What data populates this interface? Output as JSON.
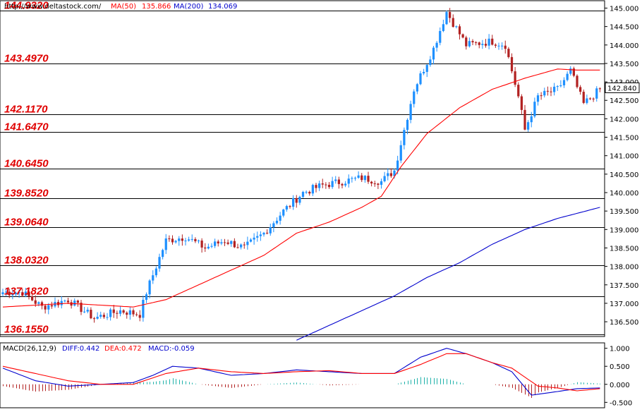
{
  "header": {
    "source": "http://www.deltastock.com/",
    "ma50_label": "MA(50)",
    "ma50_value": "135.866",
    "ma200_label": "MA(200)",
    "ma200_value": "134.069"
  },
  "macd_header": {
    "title": "MACD(26,12,9)",
    "diff": "DIFF:0.442",
    "dea": "DEA:0.472",
    "macd": "MACD:-0.059"
  },
  "colors": {
    "up": "#1e90ff",
    "down": "#b22222",
    "ma50": "#ff0000",
    "ma200": "#0000cd",
    "level_text": "#e00000",
    "level_line": "#000000",
    "histogram_pos": "#20b2aa",
    "histogram_neg": "#b22222"
  },
  "chart_data": {
    "type": "candlestick",
    "price_axis": {
      "ylim": [
        136.1,
        145.2
      ],
      "ticks": [
        "145.000",
        "144.500",
        "144.000",
        "143.500",
        "143.000",
        "142.500",
        "142.000",
        "141.500",
        "141.000",
        "140.500",
        "140.000",
        "139.500",
        "139.000",
        "138.500",
        "138.000",
        "137.500",
        "137.000",
        "136.500"
      ],
      "current_price": "142.840"
    },
    "levels": [
      "144.9320",
      "143.4970",
      "142.1170",
      "141.6470",
      "140.6450",
      "139.8520",
      "139.0640",
      "138.0320",
      "137.1820",
      "136.1550"
    ],
    "key_points": [
      [
        0,
        137.3
      ],
      [
        6,
        137.3
      ],
      [
        12,
        136.9
      ],
      [
        20,
        137.1
      ],
      [
        28,
        136.6
      ],
      [
        36,
        136.8
      ],
      [
        42,
        136.7
      ],
      [
        44,
        137.3
      ],
      [
        50,
        138.7
      ],
      [
        56,
        138.8
      ],
      [
        62,
        138.5
      ],
      [
        68,
        138.7
      ],
      [
        74,
        138.5
      ],
      [
        80,
        138.9
      ],
      [
        86,
        139.5
      ],
      [
        92,
        140.0
      ],
      [
        98,
        140.2
      ],
      [
        104,
        140.3
      ],
      [
        110,
        140.4
      ],
      [
        116,
        140.3
      ],
      [
        120,
        140.6
      ],
      [
        126,
        142.8
      ],
      [
        132,
        143.9
      ],
      [
        136,
        144.9
      ],
      [
        142,
        144.0
      ],
      [
        150,
        144.1
      ],
      [
        154,
        144.0
      ],
      [
        158,
        142.6
      ],
      [
        160,
        141.7
      ],
      [
        164,
        142.6
      ],
      [
        170,
        142.8
      ],
      [
        174,
        143.3
      ],
      [
        178,
        142.4
      ],
      [
        183,
        142.8
      ]
    ],
    "ma50": [
      [
        0,
        136.9
      ],
      [
        20,
        137.0
      ],
      [
        40,
        136.9
      ],
      [
        50,
        137.1
      ],
      [
        60,
        137.5
      ],
      [
        70,
        137.9
      ],
      [
        80,
        138.3
      ],
      [
        90,
        138.9
      ],
      [
        100,
        139.2
      ],
      [
        110,
        139.6
      ],
      [
        116,
        139.9
      ],
      [
        122,
        140.7
      ],
      [
        130,
        141.6
      ],
      [
        140,
        142.3
      ],
      [
        150,
        142.8
      ],
      [
        160,
        143.1
      ],
      [
        170,
        143.35
      ],
      [
        176,
        143.32
      ],
      [
        183,
        143.32
      ]
    ],
    "ma200": [
      [
        90,
        136.0
      ],
      [
        100,
        136.4
      ],
      [
        110,
        136.8
      ],
      [
        120,
        137.2
      ],
      [
        130,
        137.7
      ],
      [
        140,
        138.1
      ],
      [
        150,
        138.6
      ],
      [
        160,
        139.0
      ],
      [
        170,
        139.3
      ],
      [
        183,
        139.6
      ]
    ],
    "macd_axis": {
      "ylim": [
        -0.65,
        1.15
      ],
      "ticks": [
        "1.000",
        "0.500",
        "0.000",
        "-0.500"
      ]
    },
    "diff_points": [
      [
        0,
        0.45
      ],
      [
        10,
        0.1
      ],
      [
        20,
        -0.05
      ],
      [
        30,
        0.0
      ],
      [
        40,
        0.05
      ],
      [
        46,
        0.25
      ],
      [
        52,
        0.5
      ],
      [
        60,
        0.45
      ],
      [
        70,
        0.25
      ],
      [
        80,
        0.3
      ],
      [
        90,
        0.4
      ],
      [
        100,
        0.35
      ],
      [
        110,
        0.3
      ],
      [
        120,
        0.3
      ],
      [
        128,
        0.75
      ],
      [
        136,
        1.0
      ],
      [
        142,
        0.85
      ],
      [
        150,
        0.6
      ],
      [
        156,
        0.35
      ],
      [
        162,
        -0.3
      ],
      [
        170,
        -0.2
      ],
      [
        176,
        -0.12
      ],
      [
        183,
        -0.1
      ]
    ],
    "dea_points": [
      [
        0,
        0.5
      ],
      [
        10,
        0.3
      ],
      [
        20,
        0.1
      ],
      [
        30,
        0.0
      ],
      [
        40,
        0.0
      ],
      [
        50,
        0.3
      ],
      [
        60,
        0.45
      ],
      [
        70,
        0.35
      ],
      [
        80,
        0.3
      ],
      [
        90,
        0.35
      ],
      [
        100,
        0.38
      ],
      [
        110,
        0.3
      ],
      [
        120,
        0.3
      ],
      [
        128,
        0.55
      ],
      [
        136,
        0.85
      ],
      [
        142,
        0.85
      ],
      [
        150,
        0.6
      ],
      [
        156,
        0.45
      ],
      [
        164,
        -0.05
      ],
      [
        170,
        -0.1
      ],
      [
        176,
        -0.18
      ],
      [
        183,
        -0.12
      ]
    ]
  }
}
